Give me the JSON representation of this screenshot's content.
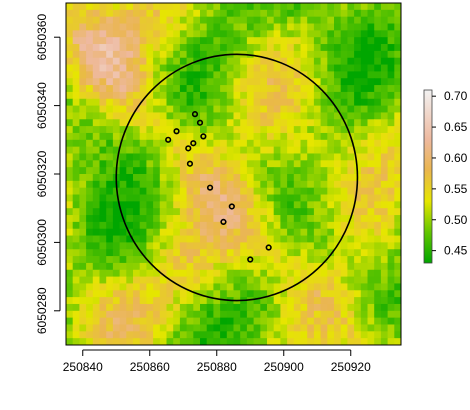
{
  "chart_data": {
    "type": "heatmap",
    "title": "",
    "xlabel": "",
    "ylabel": "",
    "x_ticks": [
      250840,
      250860,
      250880,
      250900,
      250920
    ],
    "y_ticks": [
      6050280,
      6050300,
      6050320,
      6050340,
      6050360
    ],
    "xlim": [
      250835,
      250935
    ],
    "ylim": [
      6050270,
      6050370
    ],
    "grid": false,
    "legend_placement": "right",
    "colorbar": {
      "ticks": [
        0.45,
        0.5,
        0.55,
        0.6,
        0.65,
        0.7
      ],
      "range": [
        0.43,
        0.71
      ],
      "stops": [
        {
          "value": 0.43,
          "color": "#00a600"
        },
        {
          "value": 0.48,
          "color": "#63c600"
        },
        {
          "value": 0.53,
          "color": "#e6e600"
        },
        {
          "value": 0.58,
          "color": "#eab64e"
        },
        {
          "value": 0.63,
          "color": "#eeb99f"
        },
        {
          "value": 0.71,
          "color": "#f2f2f2"
        }
      ]
    },
    "circle": {
      "center_x": 250886,
      "center_y": 6050319,
      "radius": 36
    },
    "points": [
      {
        "x": 250873.5,
        "y": 6050337.5
      },
      {
        "x": 250875,
        "y": 6050335
      },
      {
        "x": 250868,
        "y": 6050332.5
      },
      {
        "x": 250876,
        "y": 6050331
      },
      {
        "x": 250865.5,
        "y": 6050330
      },
      {
        "x": 250873,
        "y": 6050329
      },
      {
        "x": 250871.5,
        "y": 6050327.5
      },
      {
        "x": 250872,
        "y": 6050323
      },
      {
        "x": 250878,
        "y": 6050316
      },
      {
        "x": 250884.5,
        "y": 6050310.5
      },
      {
        "x": 250882,
        "y": 6050306
      },
      {
        "x": 250895.5,
        "y": 6050298.5
      },
      {
        "x": 250890,
        "y": 6050295
      }
    ]
  }
}
